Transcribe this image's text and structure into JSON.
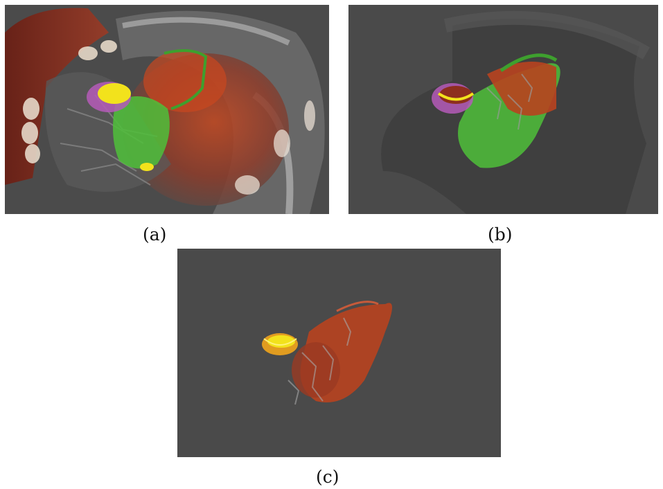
{
  "figure": {
    "panels": [
      {
        "id": "a",
        "caption": "(a)",
        "content": "volume-rendering-full-torso"
      },
      {
        "id": "b",
        "caption": "(b)",
        "content": "volume-rendering-organs-with-transparent-context"
      },
      {
        "id": "c",
        "caption": "(c)",
        "content": "volume-rendering-organs-isolated"
      }
    ]
  },
  "colors": {
    "background": "#4a4a4a",
    "tissue_red": "#b8431f",
    "highlight_green": "#4fbf3a",
    "highlight_yellow": "#f2e21c",
    "highlight_magenta": "#b55ab8",
    "bone_white": "#e8ddd2"
  }
}
